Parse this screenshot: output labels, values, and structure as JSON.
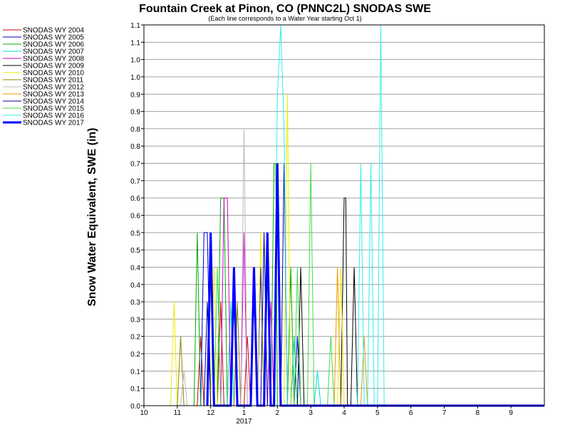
{
  "chart_data": {
    "type": "line",
    "title": "Fountain Creek at Pinon, CO (PNNC2L) SNODAS SWE",
    "subtitle": "(Each line corresponds to a Water Year starting Oct 1)",
    "ylabel": "Snow Water Equivalent, SWE (in)",
    "xlabel": "",
    "x_ticks": [
      "10",
      "11",
      "12",
      "1",
      "2",
      "3",
      "4",
      "5",
      "6",
      "7",
      "8",
      "9"
    ],
    "x_year_label": "2017",
    "y_ticks": [
      "0.0",
      "0.1",
      "0.1",
      "0.2",
      "0.2",
      "0.3",
      "0.3",
      "0.4",
      "0.4",
      "0.5",
      "0.5",
      "0.6",
      "0.6",
      "0.7",
      "0.7",
      "0.8",
      "0.8",
      "0.9",
      "0.9",
      "1.0",
      "1.0",
      "1.1",
      "1.1"
    ],
    "ylim": [
      0,
      1.1
    ],
    "grid": true,
    "legend_position": "left",
    "series": [
      {
        "name": "SNODAS WY 2004",
        "color": "#cc0000",
        "width": 1,
        "points": [
          [
            0.9,
            0
          ],
          [
            1.6,
            0
          ],
          [
            1.7,
            0.2
          ],
          [
            1.8,
            0
          ],
          [
            2.2,
            0
          ],
          [
            2.3,
            0.3
          ],
          [
            2.4,
            0
          ],
          [
            3.0,
            0
          ],
          [
            3.1,
            0.2
          ],
          [
            3.2,
            0
          ],
          [
            4.4,
            0
          ],
          [
            4.5,
            0.2
          ],
          [
            4.6,
            0
          ],
          [
            12,
            0
          ]
        ]
      },
      {
        "name": "SNODAS WY 2005",
        "color": "#0000cc",
        "width": 1,
        "points": [
          [
            1.7,
            0
          ],
          [
            1.8,
            0.5
          ],
          [
            1.9,
            0.5
          ],
          [
            2.0,
            0
          ],
          [
            2.6,
            0
          ],
          [
            2.7,
            0.3
          ],
          [
            2.8,
            0
          ],
          [
            3.4,
            0
          ],
          [
            3.5,
            0.4
          ],
          [
            3.6,
            0
          ],
          [
            4.5,
            0
          ],
          [
            4.6,
            0.2
          ],
          [
            4.7,
            0
          ],
          [
            12,
            0
          ]
        ]
      },
      {
        "name": "SNODAS WY 2006",
        "color": "#00aa00",
        "width": 1,
        "points": [
          [
            1.5,
            0
          ],
          [
            1.6,
            0.5
          ],
          [
            1.7,
            0
          ],
          [
            2.2,
            0
          ],
          [
            2.3,
            0.6
          ],
          [
            2.4,
            0.6
          ],
          [
            2.5,
            0
          ],
          [
            3.8,
            0
          ],
          [
            3.9,
            0.7
          ],
          [
            3.95,
            0.7
          ],
          [
            4.0,
            0
          ],
          [
            4.3,
            0
          ],
          [
            4.4,
            0.4
          ],
          [
            4.5,
            0
          ],
          [
            12,
            0
          ]
        ]
      },
      {
        "name": "SNODAS WY 2007",
        "color": "#00dddd",
        "width": 1,
        "points": [
          [
            2.5,
            0
          ],
          [
            2.6,
            0.3
          ],
          [
            2.7,
            0
          ],
          [
            4.4,
            0
          ],
          [
            4.5,
            0.2
          ],
          [
            4.6,
            0
          ],
          [
            5.1,
            0
          ],
          [
            5.2,
            0.1
          ],
          [
            5.3,
            0
          ],
          [
            12,
            0
          ]
        ]
      },
      {
        "name": "SNODAS WY 2008",
        "color": "#cc00cc",
        "width": 1,
        "points": [
          [
            2.3,
            0
          ],
          [
            2.4,
            0.6
          ],
          [
            2.5,
            0.6
          ],
          [
            2.6,
            0
          ],
          [
            2.9,
            0
          ],
          [
            3.0,
            0.5
          ],
          [
            3.1,
            0
          ],
          [
            3.7,
            0
          ],
          [
            3.8,
            0.3
          ],
          [
            3.9,
            0
          ],
          [
            12,
            0
          ]
        ]
      },
      {
        "name": "SNODAS WY 2009",
        "color": "#000000",
        "width": 1,
        "points": [
          [
            4.6,
            0
          ],
          [
            4.7,
            0.4
          ],
          [
            4.8,
            0
          ],
          [
            5.9,
            0
          ],
          [
            6.0,
            0.6
          ],
          [
            6.05,
            0.6
          ],
          [
            6.1,
            0
          ],
          [
            6.2,
            0
          ],
          [
            6.3,
            0.4
          ],
          [
            6.4,
            0
          ],
          [
            12,
            0
          ]
        ]
      },
      {
        "name": "SNODAS WY 2010",
        "color": "#eeee00",
        "width": 1,
        "points": [
          [
            0.8,
            0
          ],
          [
            0.9,
            0.3
          ],
          [
            1.0,
            0
          ],
          [
            2.0,
            0
          ],
          [
            2.1,
            0.4
          ],
          [
            2.2,
            0
          ],
          [
            3.4,
            0
          ],
          [
            3.5,
            0.5
          ],
          [
            3.6,
            0
          ],
          [
            4.2,
            0
          ],
          [
            4.3,
            0.9
          ],
          [
            4.4,
            0
          ],
          [
            5.8,
            0
          ],
          [
            5.9,
            0.4
          ],
          [
            6.0,
            0
          ],
          [
            12,
            0
          ]
        ]
      },
      {
        "name": "SNODAS WY 2011",
        "color": "#888800",
        "width": 1,
        "points": [
          [
            1.0,
            0
          ],
          [
            1.1,
            0.2
          ],
          [
            1.2,
            0
          ],
          [
            2.7,
            0
          ],
          [
            2.8,
            0.3
          ],
          [
            2.9,
            0
          ],
          [
            12,
            0
          ]
        ]
      },
      {
        "name": "SNODAS WY 2012",
        "color": "#bbbbbb",
        "width": 1,
        "points": [
          [
            1.1,
            0
          ],
          [
            1.2,
            0.1
          ],
          [
            1.3,
            0
          ],
          [
            2.6,
            0
          ],
          [
            2.7,
            0.4
          ],
          [
            2.8,
            0
          ],
          [
            2.9,
            0
          ],
          [
            3.0,
            0.8
          ],
          [
            3.1,
            0
          ],
          [
            12,
            0
          ]
        ]
      },
      {
        "name": "SNODAS WY 2013",
        "color": "#ee9900",
        "width": 1,
        "points": [
          [
            5.7,
            0
          ],
          [
            5.8,
            0.4
          ],
          [
            5.9,
            0
          ],
          [
            6.5,
            0
          ],
          [
            6.6,
            0.2
          ],
          [
            6.7,
            0
          ],
          [
            12,
            0
          ]
        ]
      },
      {
        "name": "SNODAS WY 2014",
        "color": "#000099",
        "width": 1,
        "points": [
          [
            1.8,
            0
          ],
          [
            1.9,
            0.3
          ],
          [
            2.0,
            0
          ],
          [
            3.5,
            0
          ],
          [
            3.6,
            0.5
          ],
          [
            3.7,
            0
          ],
          [
            4.1,
            0
          ],
          [
            4.2,
            0.7
          ],
          [
            4.3,
            0
          ],
          [
            12,
            0
          ]
        ]
      },
      {
        "name": "SNODAS WY 2015",
        "color": "#44dd44",
        "width": 1,
        "points": [
          [
            2.1,
            0
          ],
          [
            2.2,
            0.4
          ],
          [
            2.3,
            0
          ],
          [
            4.5,
            0
          ],
          [
            4.6,
            0.4
          ],
          [
            4.7,
            0
          ],
          [
            4.9,
            0
          ],
          [
            5.0,
            0.7
          ],
          [
            5.1,
            0
          ],
          [
            5.5,
            0
          ],
          [
            5.6,
            0.2
          ],
          [
            5.7,
            0
          ],
          [
            12,
            0
          ]
        ]
      },
      {
        "name": "SNODAS WY 2016",
        "color": "#33eeee",
        "width": 1,
        "points": [
          [
            3.9,
            0
          ],
          [
            4.0,
            0.9
          ],
          [
            4.1,
            1.1
          ],
          [
            4.2,
            0.8
          ],
          [
            4.3,
            0
          ],
          [
            6.4,
            0
          ],
          [
            6.5,
            0.7
          ],
          [
            6.6,
            0
          ],
          [
            6.7,
            0
          ],
          [
            6.8,
            0.7
          ],
          [
            6.9,
            0
          ],
          [
            7.0,
            0
          ],
          [
            7.1,
            1.1
          ],
          [
            7.2,
            0
          ],
          [
            12,
            0
          ]
        ]
      },
      {
        "name": "SNODAS WY 2017",
        "color": "#0000ff",
        "width": 3,
        "points": [
          [
            1.9,
            0
          ],
          [
            2.0,
            0.5
          ],
          [
            2.1,
            0
          ],
          [
            2.6,
            0
          ],
          [
            2.7,
            0.4
          ],
          [
            2.8,
            0
          ],
          [
            3.2,
            0
          ],
          [
            3.3,
            0.4
          ],
          [
            3.4,
            0
          ],
          [
            3.6,
            0
          ],
          [
            3.7,
            0.5
          ],
          [
            3.8,
            0
          ],
          [
            3.9,
            0
          ],
          [
            4.0,
            0.7
          ],
          [
            4.1,
            0
          ],
          [
            12,
            0
          ]
        ]
      }
    ]
  }
}
